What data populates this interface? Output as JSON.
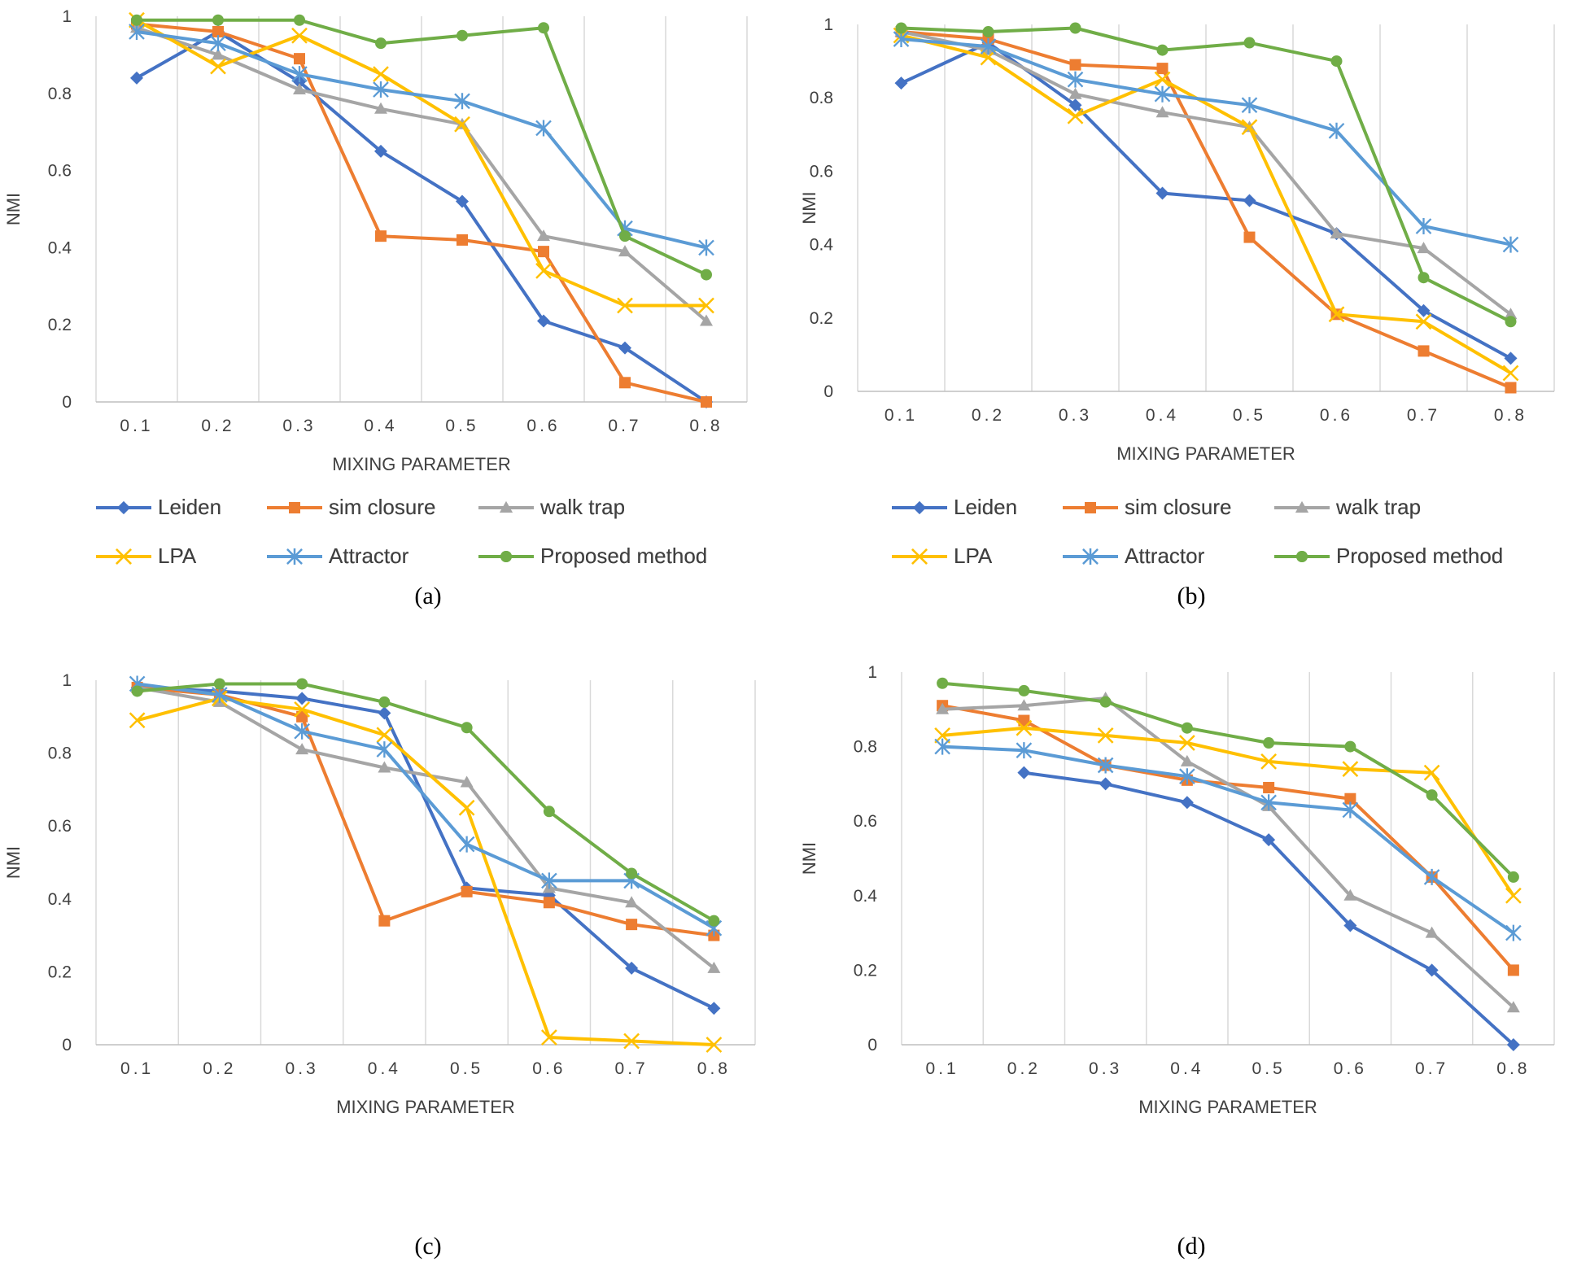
{
  "colors": {
    "Leiden": "#4472C4",
    "sim closure": "#ED7D31",
    "walk trap": "#A5A5A5",
    "LPA": "#FFC000",
    "Attractor": "#5B9BD5",
    "Proposed method": "#70AD47"
  },
  "markers": {
    "Leiden": "diamond",
    "sim closure": "square",
    "walk trap": "triangle",
    "LPA": "x",
    "Attractor": "star",
    "Proposed method": "circle"
  },
  "chart_data": [
    {
      "type": "line",
      "caption": "(a)",
      "xlabel": "MIXING PARAMETER",
      "ylabel": "NMI",
      "categories": [
        "0.1",
        "0.2",
        "0.3",
        "0.4",
        "0.5",
        "0.6",
        "0.7",
        "0.8"
      ],
      "yticks": [
        "0",
        "0.2",
        "0.4",
        "0.6",
        "0.8",
        "1"
      ],
      "ylim": [
        0,
        1
      ],
      "series": [
        {
          "name": "Leiden",
          "values": [
            0.84,
            0.96,
            0.83,
            0.65,
            0.52,
            0.21,
            0.14,
            0.0
          ]
        },
        {
          "name": "sim closure",
          "values": [
            0.98,
            0.96,
            0.89,
            0.43,
            0.42,
            0.39,
            0.05,
            0.0
          ]
        },
        {
          "name": "walk trap",
          "values": [
            0.97,
            0.9,
            0.81,
            0.76,
            0.72,
            0.43,
            0.39,
            0.21
          ]
        },
        {
          "name": "LPA",
          "values": [
            0.99,
            0.87,
            0.95,
            0.85,
            0.72,
            0.34,
            0.25,
            0.25
          ]
        },
        {
          "name": "Attractor",
          "values": [
            0.96,
            0.93,
            0.85,
            0.81,
            0.78,
            0.71,
            0.45,
            0.4
          ]
        },
        {
          "name": "Proposed method",
          "values": [
            0.99,
            0.99,
            0.99,
            0.93,
            0.95,
            0.97,
            0.43,
            0.33
          ]
        }
      ]
    },
    {
      "type": "line",
      "caption": "(b)",
      "xlabel": "MIXING PARAMETER",
      "ylabel": "NMI",
      "categories": [
        "0.1",
        "0.2",
        "0.3",
        "0.4",
        "0.5",
        "0.6",
        "0.7",
        "0.8"
      ],
      "yticks": [
        "0",
        "0.2",
        "0.4",
        "0.6",
        "0.8",
        "1"
      ],
      "ylim": [
        0,
        1
      ],
      "series": [
        {
          "name": "Leiden",
          "values": [
            0.84,
            0.95,
            0.78,
            0.54,
            0.52,
            0.43,
            0.22,
            0.09
          ]
        },
        {
          "name": "sim closure",
          "values": [
            0.98,
            0.96,
            0.89,
            0.88,
            0.42,
            0.21,
            0.11,
            0.01
          ]
        },
        {
          "name": "walk trap",
          "values": [
            0.98,
            0.93,
            0.81,
            0.76,
            0.72,
            0.43,
            0.39,
            0.21
          ]
        },
        {
          "name": "LPA",
          "values": [
            0.97,
            0.91,
            0.75,
            0.85,
            0.72,
            0.21,
            0.19,
            0.05
          ]
        },
        {
          "name": "Attractor",
          "values": [
            0.96,
            0.94,
            0.85,
            0.81,
            0.78,
            0.71,
            0.45,
            0.4
          ]
        },
        {
          "name": "Proposed method",
          "values": [
            0.99,
            0.98,
            0.99,
            0.93,
            0.95,
            0.9,
            0.31,
            0.19
          ]
        }
      ]
    },
    {
      "type": "line",
      "caption": "(c)",
      "xlabel": "MIXING PARAMETER",
      "ylabel": "NMI",
      "categories": [
        "0.1",
        "0.2",
        "0.3",
        "0.4",
        "0.5",
        "0.6",
        "0.7",
        "0.8"
      ],
      "yticks": [
        "0",
        "0.2",
        "0.4",
        "0.6",
        "0.8",
        "1"
      ],
      "ylim": [
        0,
        1
      ],
      "series": [
        {
          "name": "Leiden",
          "values": [
            0.98,
            0.97,
            0.95,
            0.91,
            0.43,
            0.41,
            0.21,
            0.1
          ]
        },
        {
          "name": "sim closure",
          "values": [
            0.98,
            0.96,
            0.9,
            0.34,
            0.42,
            0.39,
            0.33,
            0.3
          ]
        },
        {
          "name": "walk trap",
          "values": [
            0.98,
            0.94,
            0.81,
            0.76,
            0.72,
            0.43,
            0.39,
            0.21
          ]
        },
        {
          "name": "LPA",
          "values": [
            0.89,
            0.95,
            0.92,
            0.85,
            0.65,
            0.02,
            0.01,
            0.0
          ]
        },
        {
          "name": "Attractor",
          "values": [
            0.99,
            0.96,
            0.86,
            0.81,
            0.55,
            0.45,
            0.45,
            0.32
          ]
        },
        {
          "name": "Proposed method",
          "values": [
            0.97,
            0.99,
            0.99,
            0.94,
            0.87,
            0.64,
            0.47,
            0.34
          ]
        }
      ]
    },
    {
      "type": "line",
      "caption": "(d)",
      "xlabel": "MIXING PARAMETER",
      "ylabel": "NMI",
      "categories": [
        "0.1",
        "0.2",
        "0.3",
        "0.4",
        "0.5",
        "0.6",
        "0.7",
        "0.8"
      ],
      "yticks": [
        "0",
        "0.2",
        "0.4",
        "0.6",
        "0.8",
        "1"
      ],
      "ylim": [
        0,
        1
      ],
      "series": [
        {
          "name": "Leiden",
          "values": [
            null,
            0.73,
            0.7,
            0.65,
            0.55,
            0.32,
            0.2,
            0.0
          ]
        },
        {
          "name": "sim closure",
          "values": [
            0.91,
            0.87,
            0.75,
            0.71,
            0.69,
            0.66,
            0.45,
            0.2
          ]
        },
        {
          "name": "walk trap",
          "values": [
            0.9,
            0.91,
            0.93,
            0.76,
            0.64,
            0.4,
            0.3,
            0.1
          ]
        },
        {
          "name": "LPA",
          "values": [
            0.83,
            0.85,
            0.83,
            0.81,
            0.76,
            0.74,
            0.73,
            0.4
          ]
        },
        {
          "name": "Attractor",
          "values": [
            0.8,
            0.79,
            0.75,
            0.72,
            0.65,
            0.63,
            0.45,
            0.3
          ]
        },
        {
          "name": "Proposed method",
          "values": [
            0.97,
            0.95,
            0.92,
            0.85,
            0.81,
            0.8,
            0.67,
            0.45
          ]
        }
      ]
    }
  ]
}
